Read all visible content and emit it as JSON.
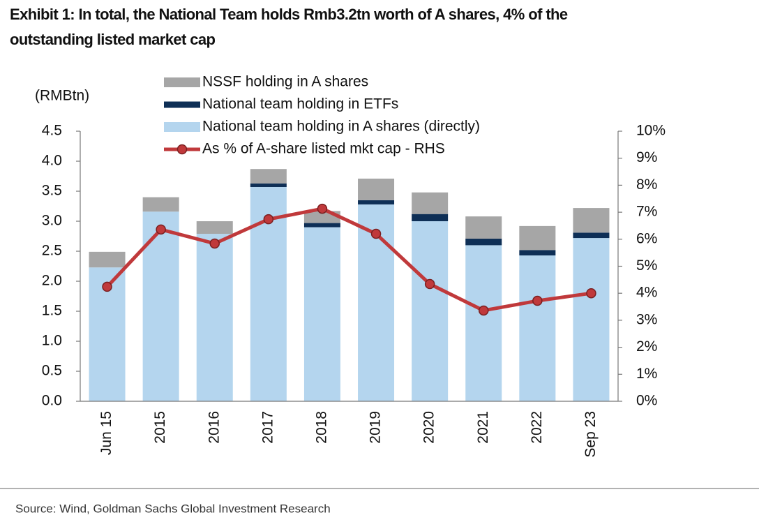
{
  "chart_data": {
    "type": "bar",
    "title": "Exhibit 1: In total, the National Team holds Rmb3.2tn worth of A shares, 4% of the",
    "title_line2": "outstanding listed market cap",
    "y_label": "(RMBtn)",
    "source": "Source: Wind, Goldman Sachs Global Investment Research",
    "categories": [
      "Jun 15",
      "2015",
      "2016",
      "2017",
      "2018",
      "2019",
      "2020",
      "2021",
      "2022",
      "Sep 23"
    ],
    "series": [
      {
        "name": "NSSF holding in A shares",
        "color": "#a6a6a6",
        "values": [
          0.26,
          0.24,
          0.21,
          0.24,
          0.2,
          0.36,
          0.36,
          0.37,
          0.4,
          0.41
        ]
      },
      {
        "name": "National team holding in ETFs",
        "color": "#0e2f56",
        "values": [
          0,
          0,
          0,
          0.06,
          0.07,
          0.07,
          0.12,
          0.11,
          0.09,
          0.09
        ]
      },
      {
        "name": "National team holding in A shares (directly)",
        "color": "#b4d5ee",
        "values": [
          2.23,
          3.16,
          2.79,
          3.57,
          2.9,
          3.28,
          3.0,
          2.6,
          2.43,
          2.72
        ]
      },
      {
        "name": "As % of A-share listed mkt cap - RHS",
        "color": "#c0393b",
        "type": "line",
        "axis": "y2",
        "values": [
          4.24,
          6.36,
          5.84,
          6.74,
          7.13,
          6.2,
          4.34,
          3.36,
          3.72,
          4.0
        ]
      }
    ],
    "ylim": [
      0,
      4.5
    ],
    "yticks": [
      {
        "value": 0,
        "label": "0.0"
      },
      {
        "value": 0.5,
        "label": "0.5"
      },
      {
        "value": 1,
        "label": "1.0"
      },
      {
        "value": 1.5,
        "label": "1.5"
      },
      {
        "value": 2,
        "label": "2.0"
      },
      {
        "value": 2.5,
        "label": "2.5"
      },
      {
        "value": 3,
        "label": "3.0"
      },
      {
        "value": 3.5,
        "label": "3.5"
      },
      {
        "value": 4,
        "label": "4.0"
      },
      {
        "value": 4.5,
        "label": "4.5"
      }
    ],
    "y2lim": [
      0,
      10
    ],
    "y2ticks": [
      {
        "value": 0,
        "label": "0%"
      },
      {
        "value": 1,
        "label": "1%"
      },
      {
        "value": 2,
        "label": "2%"
      },
      {
        "value": 3,
        "label": "3%"
      },
      {
        "value": 4,
        "label": "4%"
      },
      {
        "value": 5,
        "label": "5%"
      },
      {
        "value": 6,
        "label": "6%"
      },
      {
        "value": 7,
        "label": "7%"
      },
      {
        "value": 8,
        "label": "8%"
      },
      {
        "value": 9,
        "label": "9%"
      },
      {
        "value": 10,
        "label": "10%"
      }
    ],
    "stacked": true,
    "grid": false
  }
}
